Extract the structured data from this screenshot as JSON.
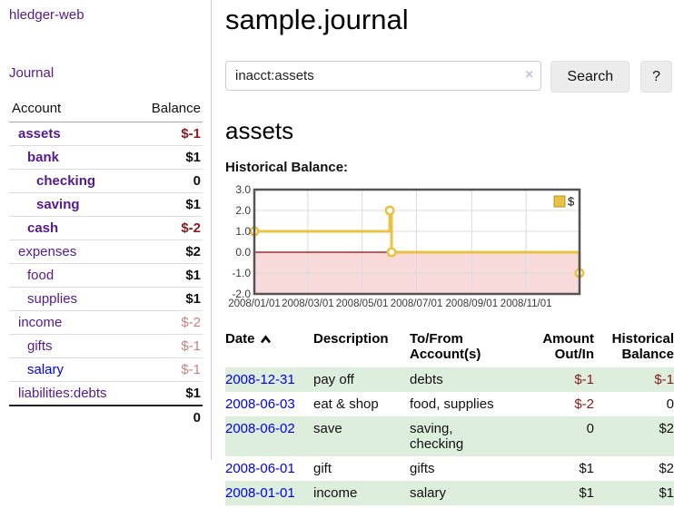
{
  "app": {
    "title": "hledger-web"
  },
  "sidebar": {
    "nav": [
      {
        "label": "Journal"
      }
    ],
    "accounts_table": {
      "headers": [
        "Account",
        "Balance"
      ],
      "rows": [
        {
          "name": "assets",
          "indent": 0,
          "bold": true,
          "link_color": "purple",
          "balance": "$-1",
          "balance_class": "neg-strong"
        },
        {
          "name": "bank",
          "indent": 1,
          "bold": true,
          "link_color": "purple",
          "balance": "$1",
          "balance_class": ""
        },
        {
          "name": "checking",
          "indent": 2,
          "bold": true,
          "link_color": "purple",
          "balance": "0",
          "balance_class": ""
        },
        {
          "name": "saving",
          "indent": 2,
          "bold": true,
          "link_color": "purple",
          "balance": "$1",
          "balance_class": ""
        },
        {
          "name": "cash",
          "indent": 1,
          "bold": true,
          "link_color": "purple",
          "balance": "$-2",
          "balance_class": "neg-strong"
        },
        {
          "name": "expenses",
          "indent": 0,
          "bold": false,
          "link_color": "purple",
          "balance": "$2",
          "balance_class": ""
        },
        {
          "name": "food",
          "indent": 1,
          "bold": false,
          "link_color": "purple",
          "balance": "$1",
          "balance_class": ""
        },
        {
          "name": "supplies",
          "indent": 1,
          "bold": false,
          "link_color": "purple",
          "balance": "$1",
          "balance_class": ""
        },
        {
          "name": "income",
          "indent": 0,
          "bold": false,
          "link_color": "purple",
          "balance": "$-2",
          "balance_class": "neg-muted"
        },
        {
          "name": "gifts",
          "indent": 1,
          "bold": false,
          "link_color": "purple",
          "balance": "$-1",
          "balance_class": "neg-muted"
        },
        {
          "name": "salary",
          "indent": 1,
          "bold": false,
          "link_color": "blue",
          "balance": "$-1",
          "balance_class": "neg-muted"
        },
        {
          "name": "liabilities:debts",
          "indent": 0,
          "bold": false,
          "link_color": "purple",
          "balance": "$1",
          "balance_class": ""
        }
      ],
      "total": "0"
    }
  },
  "header": {
    "title": "sample.journal"
  },
  "search": {
    "value": "inacct:assets",
    "clear_icon": "×",
    "button": "Search",
    "help_button": "?"
  },
  "main": {
    "account_title": "assets",
    "chart_label": "Historical Balance:"
  },
  "chart_data": {
    "type": "line",
    "title": "Historical Balance:",
    "style": "step",
    "grid": true,
    "legend_position": "top-right",
    "xlim": [
      "2008-01-01",
      "2008-12-31"
    ],
    "ylim": [
      -2,
      3
    ],
    "x_ticks": [
      "2008/01/01",
      "2008/03/01",
      "2008/05/01",
      "2008/07/01",
      "2008/09/01",
      "2008/11/01"
    ],
    "y_ticks": [
      3.0,
      2.0,
      1.0,
      0.0,
      -1.0,
      -2.0
    ],
    "series": [
      {
        "name": "$",
        "color": "#e8c240",
        "points": [
          [
            "2008-01-01",
            1
          ],
          [
            "2008-06-01",
            2
          ],
          [
            "2008-06-03",
            0
          ],
          [
            "2008-12-31",
            -1
          ]
        ]
      }
    ],
    "negative_region_color": "#f9dada",
    "zero_line_color": "#aa0000",
    "border_color": "#545454",
    "gridline_color": "#dcdcdc"
  },
  "register_table": {
    "headers": [
      "Date",
      "Description",
      "To/From Account(s)",
      "Amount Out/In",
      "Historical Balance"
    ],
    "rows": [
      {
        "date": "2008-12-31",
        "description": "pay off",
        "accounts": "debts",
        "amount": "$-1",
        "amount_neg": true,
        "balance": "$-1",
        "balance_neg": true,
        "highlight": true
      },
      {
        "date": "2008-06-03",
        "description": "eat & shop",
        "accounts": "food, supplies",
        "amount": "$-2",
        "amount_neg": true,
        "balance": "0",
        "balance_neg": false,
        "highlight": false
      },
      {
        "date": "2008-06-02",
        "description": "save",
        "accounts": "saving,\nchecking",
        "amount": "0",
        "amount_neg": false,
        "balance": "$2",
        "balance_neg": false,
        "highlight": true
      },
      {
        "date": "2008-06-01",
        "description": "gift",
        "accounts": "gifts",
        "amount": "$1",
        "amount_neg": false,
        "balance": "$2",
        "balance_neg": false,
        "highlight": false
      },
      {
        "date": "2008-01-01",
        "description": "income",
        "accounts": "salary",
        "amount": "$1",
        "amount_neg": false,
        "balance": "$1",
        "balance_neg": false,
        "highlight": true
      }
    ]
  }
}
